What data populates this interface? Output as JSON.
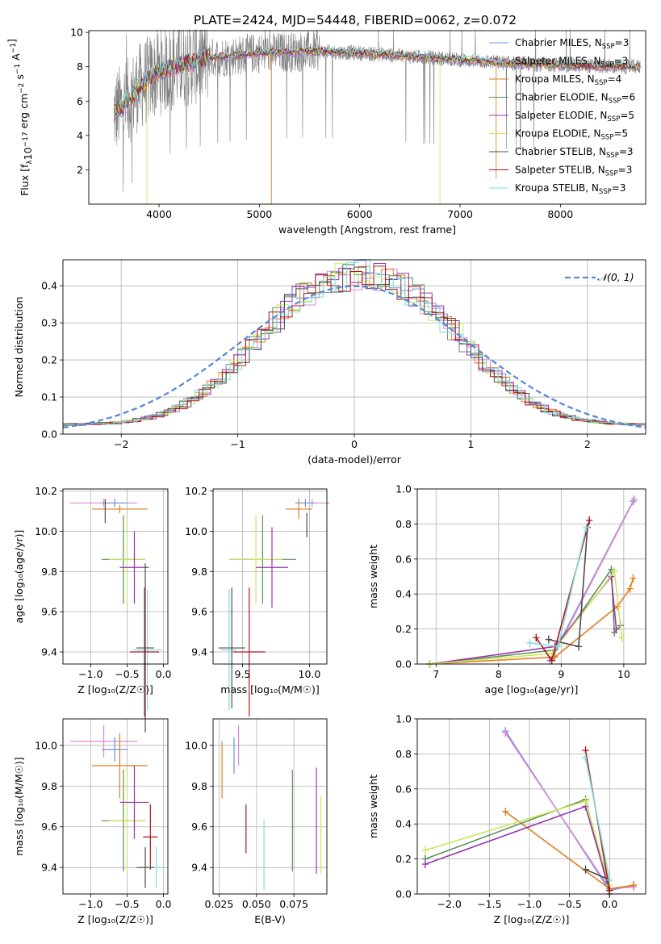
{
  "figure_title": "PLATE=2424, MJD=54448, FIBERID=0062, z=0.072",
  "colors": {
    "Chabrier MILES": "#6f8fdc",
    "Salpeter MILES": "#dd88d6",
    "Kroupa MILES": "#e07e1f",
    "Chabrier ELODIE": "#5e8f5c",
    "Salpeter ELODIE": "#9a36b0",
    "Kroupa ELODIE": "#cde75c",
    "Chabrier STELIB": "#4c4c4c",
    "Salpeter STELIB": "#b0161a",
    "Kroupa STELIB": "#7fdce0",
    "observed": "#808080",
    "normal": "#5b8bd4"
  },
  "chart_data": [
    {
      "id": "spectrum",
      "type": "line",
      "title": "PLATE=2424, MJD=54448, FIBERID=0062, z=0.072",
      "xlabel": "wavelength [Angstrom, rest frame]",
      "ylabel": "Flux [f",
      "xlim": [
        3300,
        8850
      ],
      "ylim": [
        0,
        10.1
      ],
      "xticks": [
        "4000",
        "5000",
        "6000",
        "7000",
        "8000"
      ],
      "yticks": [
        "2",
        "4",
        "6",
        "8",
        "10"
      ],
      "grid": false,
      "legend_position": "right",
      "continuum": [
        [
          3550,
          5.3
        ],
        [
          3700,
          6.0
        ],
        [
          3800,
          6.8
        ],
        [
          3900,
          7.3
        ],
        [
          4000,
          7.7
        ],
        [
          4200,
          8.1
        ],
        [
          4500,
          8.5
        ],
        [
          5000,
          8.8
        ],
        [
          5500,
          8.9
        ],
        [
          6000,
          8.8
        ],
        [
          6500,
          8.6
        ],
        [
          7000,
          8.4
        ],
        [
          7500,
          8.2
        ],
        [
          8000,
          8.1
        ],
        [
          8500,
          8.0
        ],
        [
          8800,
          8.0
        ]
      ],
      "legend": [
        {
          "label": "Chabrier MILES, N",
          "n": "3"
        },
        {
          "label": "Salpeter MILES, N",
          "n": "3"
        },
        {
          "label": "Kroupa MILES, N",
          "n": "4"
        },
        {
          "label": "Chabrier ELODIE, N",
          "n": "6"
        },
        {
          "label": "Salpeter ELODIE, N",
          "n": "5"
        },
        {
          "label": "Kroupa ELODIE, N",
          "n": "5"
        },
        {
          "label": "Chabrier STELIB, N",
          "n": "3"
        },
        {
          "label": "Salpeter STELIB, N",
          "n": "3"
        },
        {
          "label": "Kroupa STELIB, N",
          "n": "3"
        }
      ]
    },
    {
      "id": "residuals",
      "type": "bar",
      "xlabel": "(data-model)/error",
      "ylabel": "Normed distribution",
      "xlim": [
        -2.5,
        2.5
      ],
      "ylim": [
        0,
        0.47
      ],
      "xticks": [
        "−2",
        "−1",
        "0",
        "1",
        "2"
      ],
      "yticks": [
        "0.0",
        "0.1",
        "0.2",
        "0.3",
        "0.4"
      ],
      "grid": true,
      "legend": [
        {
          "name": "𝒩(0, 1)"
        }
      ],
      "legend_position": "top-right",
      "bin_width": 0.1
    },
    {
      "id": "age-vs-Z",
      "type": "scatter",
      "xlabel": "Z [log₁₀(Z/Z☉)]",
      "ylabel": "age  [log₁₀(age/yr)]",
      "xlim": [
        -1.38,
        0.06
      ],
      "ylim": [
        9.34,
        10.21
      ],
      "xticks": [
        "−1.0",
        "−0.5",
        "0.0"
      ],
      "yticks": [
        "9.4",
        "9.6",
        "9.8",
        "10.0",
        "10.2"
      ],
      "grid": true,
      "crosses": [
        {
          "series": "Salpeter MILES",
          "x": -0.82,
          "y": 10.14,
          "xerr": 0.46,
          "yerr": 0.02
        },
        {
          "series": "Chabrier MILES",
          "x": -0.67,
          "y": 10.14,
          "xerr": 0.18,
          "yerr": 0.02
        },
        {
          "series": "Kroupa MILES",
          "x": -0.6,
          "y": 10.11,
          "xerr": 0.38,
          "yerr": 0.02
        },
        {
          "series": "Chabrier STELIB",
          "x": -0.8,
          "y": 10.1,
          "xerr": 0.0,
          "yerr": 0.06
        },
        {
          "series": "Chabrier ELODIE",
          "x": -0.55,
          "y": 9.86,
          "xerr": 0.3,
          "yerr": 0.22
        },
        {
          "series": "Kroupa ELODIE",
          "x": -0.5,
          "y": 9.86,
          "xerr": 0.25,
          "yerr": 0.22
        },
        {
          "series": "Salpeter ELODIE",
          "x": -0.4,
          "y": 9.82,
          "xerr": 0.2,
          "yerr": 0.18
        },
        {
          "series": "Kroupa STELIB",
          "x": -0.22,
          "y": 9.41,
          "xerr": 0.2,
          "yerr": 0.3
        },
        {
          "series": "Salpeter STELIB",
          "x": -0.26,
          "y": 9.4,
          "xerr": 0.2,
          "yerr": 0.32
        },
        {
          "series": "Chabrier STELIB",
          "x": -0.25,
          "y": 9.42,
          "xerr": 0.12,
          "yerr": 0.42
        }
      ]
    },
    {
      "id": "age-vs-mass",
      "type": "scatter",
      "xlabel": "mass [log₁₀(M/M☉)]",
      "ylabel": "",
      "xlim": [
        9.28,
        10.13
      ],
      "ylim": [
        9.34,
        10.21
      ],
      "xticks": [
        "9.5",
        "10.0"
      ],
      "yticks": [
        "9.4",
        "9.6",
        "9.8",
        "10.0",
        "10.2"
      ],
      "grid": true,
      "crosses": [
        {
          "series": "Salpeter MILES",
          "x": 10.02,
          "y": 10.14,
          "xerr": 0.13,
          "yerr": 0.02
        },
        {
          "series": "Chabrier MILES",
          "x": 9.97,
          "y": 10.14,
          "xerr": 0.07,
          "yerr": 0.02
        },
        {
          "series": "Kroupa MILES",
          "x": 9.92,
          "y": 10.11,
          "xerr": 0.1,
          "yerr": 0.05
        },
        {
          "series": "Chabrier STELIB",
          "x": 9.98,
          "y": 10.03,
          "xerr": 0.0,
          "yerr": 0.06
        },
        {
          "series": "Chabrier ELODIE",
          "x": 9.65,
          "y": 9.86,
          "xerr": 0.25,
          "yerr": 0.22
        },
        {
          "series": "Kroupa ELODIE",
          "x": 9.6,
          "y": 9.86,
          "xerr": 0.2,
          "yerr": 0.22
        },
        {
          "series": "Salpeter ELODIE",
          "x": 9.72,
          "y": 9.82,
          "xerr": 0.12,
          "yerr": 0.2
        },
        {
          "series": "Kroupa STELIB",
          "x": 9.4,
          "y": 9.41,
          "xerr": 0.06,
          "yerr": 0.3
        },
        {
          "series": "Salpeter STELIB",
          "x": 9.55,
          "y": 9.4,
          "xerr": 0.12,
          "yerr": 0.32
        },
        {
          "series": "Chabrier STELIB",
          "x": 9.42,
          "y": 9.42,
          "xerr": 0.1,
          "yerr": 0.3
        }
      ]
    },
    {
      "id": "massweight-vs-age",
      "type": "line",
      "xlabel": "age  [log₁₀(age/yr)]",
      "ylabel": "mass weight",
      "xlim": [
        6.7,
        10.35
      ],
      "ylim": [
        0,
        1.0
      ],
      "xticks": [
        "7",
        "8",
        "9",
        "10"
      ],
      "yticks": [
        "0.0",
        "0.2",
        "0.4",
        "0.6",
        "0.8",
        "1.0"
      ],
      "grid": true,
      "series": [
        {
          "name": "Chabrier MILES",
          "points": [
            [
              8.82,
              0.02
            ],
            [
              10.15,
              0.93
            ]
          ]
        },
        {
          "name": "Salpeter MILES",
          "points": [
            [
              8.85,
              0.03
            ],
            [
              10.17,
              0.94
            ]
          ]
        },
        {
          "name": "Kroupa MILES",
          "points": [
            [
              6.9,
              0.0
            ],
            [
              8.9,
              0.04
            ],
            [
              9.9,
              0.33
            ],
            [
              10.1,
              0.43
            ],
            [
              10.15,
              0.49
            ]
          ]
        },
        {
          "name": "Chabrier ELODIE",
          "points": [
            [
              6.9,
              0.0
            ],
            [
              8.9,
              0.08
            ],
            [
              9.8,
              0.54
            ],
            [
              9.85,
              0.18
            ],
            [
              9.95,
              0.22
            ]
          ]
        },
        {
          "name": "Salpeter ELODIE",
          "points": [
            [
              6.9,
              0.0
            ],
            [
              8.9,
              0.1
            ],
            [
              9.8,
              0.5
            ],
            [
              9.88,
              0.2
            ]
          ]
        },
        {
          "name": "Kroupa ELODIE",
          "points": [
            [
              6.9,
              0.0
            ],
            [
              8.85,
              0.06
            ],
            [
              9.85,
              0.53
            ],
            [
              9.97,
              0.15
            ]
          ]
        },
        {
          "name": "Chabrier STELIB",
          "points": [
            [
              8.8,
              0.14
            ],
            [
              9.28,
              0.1
            ],
            [
              9.42,
              0.78
            ]
          ]
        },
        {
          "name": "Salpeter STELIB",
          "points": [
            [
              8.6,
              0.15
            ],
            [
              8.85,
              0.02
            ],
            [
              9.45,
              0.82
            ]
          ]
        },
        {
          "name": "Kroupa STELIB",
          "points": [
            [
              8.5,
              0.12
            ],
            [
              8.95,
              0.1
            ],
            [
              9.4,
              0.78
            ]
          ]
        }
      ]
    },
    {
      "id": "mass-vs-Z",
      "type": "scatter",
      "xlabel": "Z [log₁₀(Z/Z☉)]",
      "ylabel": "mass [log₁₀(M/M☉)]",
      "xlim": [
        -1.38,
        0.06
      ],
      "ylim": [
        9.27,
        10.13
      ],
      "xticks": [
        "−1.0",
        "−0.5",
        "0.0"
      ],
      "yticks": [
        "9.4",
        "9.6",
        "9.8",
        "10.0"
      ],
      "grid": true,
      "crosses": [
        {
          "series": "Salpeter MILES",
          "x": -0.82,
          "y": 10.02,
          "xerr": 0.46,
          "yerr": 0.08
        },
        {
          "series": "Chabrier MILES",
          "x": -0.67,
          "y": 9.98,
          "xerr": 0.18,
          "yerr": 0.06
        },
        {
          "series": "Kroupa MILES",
          "x": -0.6,
          "y": 9.9,
          "xerr": 0.38,
          "yerr": 0.16
        },
        {
          "series": "Chabrier ELODIE",
          "x": -0.55,
          "y": 9.63,
          "xerr": 0.3,
          "yerr": 0.25
        },
        {
          "series": "Kroupa ELODIE",
          "x": -0.5,
          "y": 9.63,
          "xerr": 0.25,
          "yerr": 0.26
        },
        {
          "series": "Salpeter ELODIE",
          "x": -0.4,
          "y": 9.72,
          "xerr": 0.2,
          "yerr": 0.18
        },
        {
          "series": "Salpeter STELIB",
          "x": -0.18,
          "y": 9.55,
          "xerr": 0.1,
          "yerr": 0.16
        },
        {
          "series": "Kroupa STELIB",
          "x": -0.1,
          "y": 9.4,
          "xerr": 0.12,
          "yerr": 0.1
        },
        {
          "series": "Chabrier STELIB",
          "x": -0.25,
          "y": 9.4,
          "xerr": 0.12,
          "yerr": 0.1
        }
      ]
    },
    {
      "id": "mass-vs-ebv",
      "type": "scatter",
      "xlabel": "E(B-V)",
      "ylabel": "",
      "xlim": [
        0.021,
        0.097
      ],
      "ylim": [
        9.27,
        10.13
      ],
      "xticks": [
        "0.025",
        "0.050",
        "0.075"
      ],
      "yticks": [
        "9.4",
        "9.6",
        "9.8",
        "10.0"
      ],
      "grid": true,
      "crosses": [
        {
          "series": "Kroupa MILES",
          "x": 0.027,
          "y": 9.88,
          "xerr": 0,
          "yerr": 0.14
        },
        {
          "series": "Chabrier MILES",
          "x": 0.035,
          "y": 9.95,
          "xerr": 0,
          "yerr": 0.09
        },
        {
          "series": "Salpeter MILES",
          "x": 0.038,
          "y": 10.0,
          "xerr": 0,
          "yerr": 0.1
        },
        {
          "series": "Salpeter STELIB",
          "x": 0.043,
          "y": 9.59,
          "xerr": 0,
          "yerr": 0.12
        },
        {
          "series": "Kroupa STELIB",
          "x": 0.055,
          "y": 9.46,
          "xerr": 0,
          "yerr": 0.17
        },
        {
          "series": "Chabrier ELODIE",
          "x": 0.074,
          "y": 9.63,
          "xerr": 0,
          "yerr": 0.25
        },
        {
          "series": "Salpeter ELODIE",
          "x": 0.09,
          "y": 9.63,
          "xerr": 0,
          "yerr": 0.26
        },
        {
          "series": "Kroupa ELODIE",
          "x": 0.093,
          "y": 9.56,
          "xerr": 0,
          "yerr": 0.19
        }
      ]
    },
    {
      "id": "massweight-vs-Z",
      "type": "line",
      "xlabel": "Z [log₁₀(Z/Z☉)]",
      "ylabel": "mass weight",
      "xlim": [
        -2.4,
        0.45
      ],
      "ylim": [
        0,
        1.0
      ],
      "xticks": [
        "−2.0",
        "−1.5",
        "−1.0",
        "−0.5",
        "0.0"
      ],
      "yticks": [
        "0.0",
        "0.2",
        "0.4",
        "0.6",
        "0.8",
        "1.0"
      ],
      "grid": true,
      "series": [
        {
          "name": "Chabrier MILES",
          "points": [
            [
              -1.3,
              0.93
            ],
            [
              0.0,
              0.02
            ],
            [
              0.3,
              0.05
            ]
          ]
        },
        {
          "name": "Salpeter MILES",
          "points": [
            [
              -1.3,
              0.92
            ],
            [
              0.0,
              0.03
            ],
            [
              0.3,
              0.04
            ]
          ]
        },
        {
          "name": "Kroupa MILES",
          "points": [
            [
              -1.3,
              0.47
            ],
            [
              0.0,
              0.03
            ],
            [
              0.3,
              0.05
            ]
          ]
        },
        {
          "name": "Chabrier ELODIE",
          "points": [
            [
              -2.3,
              0.2
            ],
            [
              -0.3,
              0.54
            ],
            [
              0.0,
              0.0
            ]
          ]
        },
        {
          "name": "Salpeter ELODIE",
          "points": [
            [
              -2.3,
              0.17
            ],
            [
              -0.3,
              0.5
            ],
            [
              0.0,
              0.02
            ]
          ]
        },
        {
          "name": "Kroupa ELODIE",
          "points": [
            [
              -2.3,
              0.25
            ],
            [
              -0.3,
              0.53
            ],
            [
              0.0,
              0.05
            ]
          ]
        },
        {
          "name": "Chabrier STELIB",
          "points": [
            [
              -0.3,
              0.14
            ],
            [
              0.0,
              0.08
            ]
          ]
        },
        {
          "name": "Salpeter STELIB",
          "points": [
            [
              -0.3,
              0.82
            ],
            [
              0.0,
              0.02
            ]
          ]
        },
        {
          "name": "Kroupa STELIB",
          "points": [
            [
              -0.3,
              0.78
            ],
            [
              0.0,
              0.08
            ]
          ]
        }
      ]
    }
  ]
}
